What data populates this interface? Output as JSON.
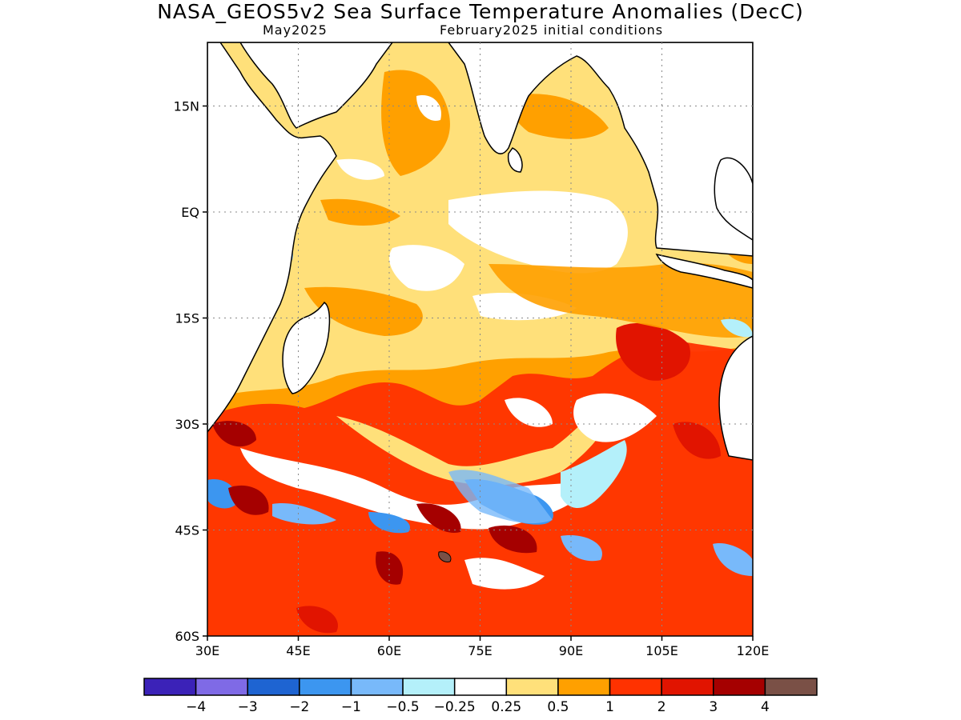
{
  "title": "NASA_GEOS5v2 Sea Surface Temperature Anomalies (DecC)",
  "subtitle_left": "May2025",
  "subtitle_right": "February2025 initial conditions",
  "map": {
    "lon_range": [
      30,
      120
    ],
    "lat_range": [
      -60,
      24
    ],
    "lat_ticks": [
      {
        "lat": 15,
        "label": "15N"
      },
      {
        "lat": 0,
        "label": "EQ"
      },
      {
        "lat": -15,
        "label": "15S"
      },
      {
        "lat": -30,
        "label": "30S"
      },
      {
        "lat": -45,
        "label": "45S"
      },
      {
        "lat": -60,
        "label": "60S"
      }
    ],
    "lon_ticks": [
      {
        "lon": 30,
        "label": "30E"
      },
      {
        "lon": 45,
        "label": "45E"
      },
      {
        "lon": 60,
        "label": "60E"
      },
      {
        "lon": 75,
        "label": "75E"
      },
      {
        "lon": 90,
        "label": "90E"
      },
      {
        "lon": 105,
        "label": "105E"
      },
      {
        "lon": 120,
        "label": "120E"
      }
    ],
    "land_color": "#ffffff",
    "coast_color": "#000000"
  },
  "colorbar": {
    "colors": [
      "#3b22b8",
      "#7f6ae6",
      "#1e64d2",
      "#3c96f0",
      "#78b9fa",
      "#b4f0fa",
      "#ffffff",
      "#ffe07a",
      "#ffa000",
      "#ff3200",
      "#e11400",
      "#a50000",
      "#7a5046"
    ],
    "labels": [
      "−4",
      "−3",
      "−2",
      "−1",
      "−0.5",
      "−0.25",
      "0.25",
      "0.5",
      "1",
      "2",
      "3",
      "4"
    ]
  }
}
